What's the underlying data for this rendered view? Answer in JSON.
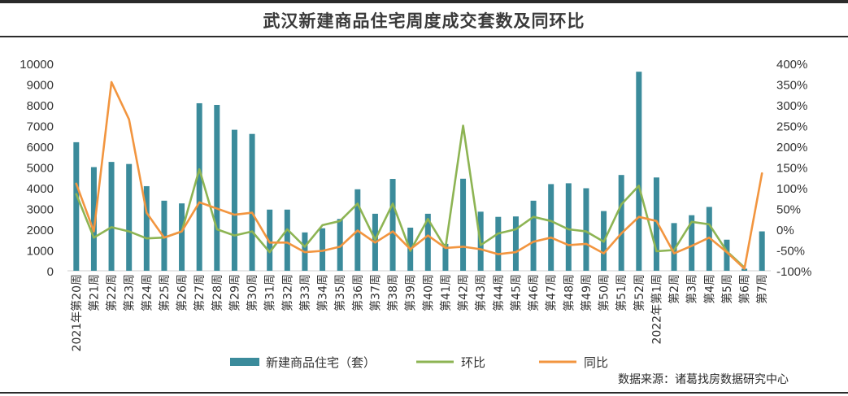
{
  "title": "武汉新建商品住宅周度成交套数及同环比",
  "source": "数据来源：诸葛找房数据研究中心",
  "colors": {
    "bar": "#3B8B9B",
    "hb": "#8DB453",
    "tb": "#F2953F",
    "axis": "#cfcfcf",
    "text": "#333333"
  },
  "chart_data": {
    "type": "bar",
    "categories": [
      "2021年第20周",
      "第21周",
      "第22周",
      "第23周",
      "第24周",
      "第25周",
      "第26周",
      "第27周",
      "第28周",
      "第29周",
      "第30周",
      "第31周",
      "第32周",
      "第33周",
      "第34周",
      "第35周",
      "第36周",
      "第37周",
      "第38周",
      "第39周",
      "第40周",
      "第41周",
      "第42周",
      "第43周",
      "第44周",
      "第45周",
      "第46周",
      "第47周",
      "第48周",
      "第49周",
      "第50周",
      "第51周",
      "第52周",
      "2022年第1周",
      "第2周",
      "第3周",
      "第4周",
      "第5周",
      "第6周",
      "第7周"
    ],
    "series": [
      {
        "name": "新建商品住宅（套）",
        "type": "bar",
        "axis": "left",
        "values": [
          6200,
          5000,
          5250,
          5150,
          4080,
          3380,
          3250,
          8080,
          8000,
          6800,
          6600,
          2950,
          2950,
          1850,
          2050,
          2500,
          3930,
          2750,
          4430,
          2080,
          2750,
          1300,
          4440,
          2850,
          2600,
          2620,
          3380,
          4180,
          4220,
          3980,
          2880,
          4620,
          9600,
          4500,
          2300,
          2680,
          3080,
          1500,
          100,
          1900
        ]
      },
      {
        "name": "环比",
        "type": "line",
        "axis": "right",
        "values": [
          85,
          -20,
          5,
          -5,
          -22,
          -20,
          -5,
          145,
          0,
          -15,
          -5,
          -55,
          0,
          -42,
          10,
          20,
          62,
          -25,
          62,
          -52,
          25,
          -45,
          250,
          -38,
          -10,
          0,
          30,
          20,
          0,
          -5,
          -30,
          60,
          105,
          -53,
          -50,
          18,
          12,
          -53,
          -92,
          null
        ]
      },
      {
        "name": "同比",
        "type": "line",
        "axis": "right",
        "values": [
          110,
          -5,
          355,
          265,
          40,
          -20,
          -5,
          65,
          50,
          35,
          40,
          -32,
          -32,
          -55,
          -52,
          -42,
          -3,
          -32,
          -5,
          -48,
          -15,
          -45,
          -42,
          -48,
          -60,
          -55,
          -30,
          -20,
          -38,
          -35,
          -58,
          -10,
          30,
          20,
          -58,
          -40,
          -20,
          -55,
          -95,
          135
        ]
      }
    ],
    "ylim_left": [
      0,
      10000
    ],
    "yticks_left": [
      "0",
      "1000",
      "2000",
      "3000",
      "4000",
      "5000",
      "6000",
      "7000",
      "8000",
      "9000",
      "10000"
    ],
    "ylim_right": [
      -100,
      400
    ],
    "yticks_right": [
      "-100%",
      "-50%",
      "0%",
      "50%",
      "100%",
      "150%",
      "200%",
      "250%",
      "300%",
      "350%",
      "400%"
    ],
    "legend": [
      "新建商品住宅（套）",
      "环比",
      "同比"
    ],
    "legend_position": "bottom",
    "grid": false
  }
}
